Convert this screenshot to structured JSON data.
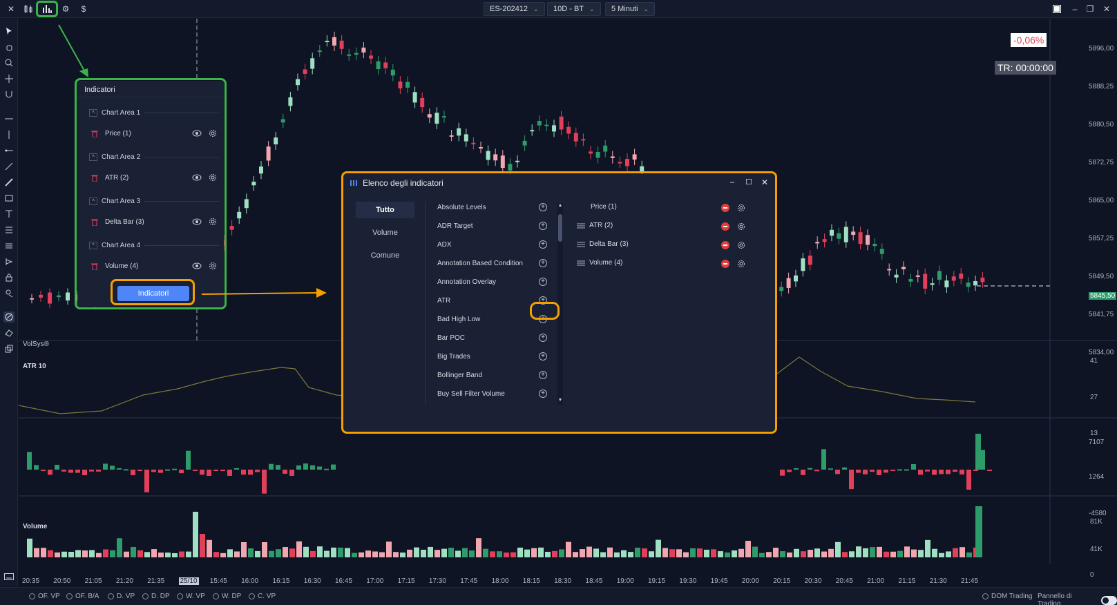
{
  "topbar": {
    "symbol": "ES-202412",
    "period": "10D - BT",
    "timeframe": "5 Minuti"
  },
  "main_chart": {
    "brand": "VolSys®",
    "change": "-0,06%",
    "timer": "TR: 00:00:00",
    "price_labels": [
      "5896,00",
      "5888,25",
      "5880,50",
      "5872,75",
      "5865,00",
      "5857,25",
      "5849,50",
      "5845,50",
      "5841,75",
      "5834,00"
    ]
  },
  "atr_pane": {
    "title": "ATR 10",
    "labels": [
      "41",
      "27",
      "13"
    ]
  },
  "delta_pane": {
    "labels": [
      "7107",
      "1264",
      "-4580"
    ]
  },
  "volume_pane": {
    "title": "Volume",
    "labels": [
      "81K",
      "41K",
      "0"
    ]
  },
  "time_axis": [
    "20:35",
    "20:50",
    "21:05",
    "21:20",
    "21:35",
    "25/10",
    "15:45",
    "16:00",
    "16:15",
    "16:30",
    "16:45",
    "17:00",
    "17:15",
    "17:30",
    "17:45",
    "18:00",
    "18:15",
    "18:30",
    "18:45",
    "19:00",
    "19:15",
    "19:30",
    "19:45",
    "20:00",
    "20:15",
    "20:30",
    "20:45",
    "21:00",
    "21:15",
    "21:30",
    "21:45"
  ],
  "indicator_panel": {
    "title": "Indicatori",
    "areas": [
      {
        "area": "Chart Area 1",
        "item": "Price (1)"
      },
      {
        "area": "Chart Area 2",
        "item": "ATR (2)"
      },
      {
        "area": "Chart Area 3",
        "item": "Delta Bar (3)"
      },
      {
        "area": "Chart Area 4",
        "item": "Volume (4)"
      }
    ],
    "button": "Indicatori"
  },
  "dialog": {
    "title": "Elenco degli indicatori",
    "categories": [
      "Tutto",
      "Volume",
      "Comune"
    ],
    "available": [
      "Absolute Levels",
      "ADR Target",
      "ADX",
      "Annotation Based Condition",
      "Annotation Overlay",
      "ATR",
      "Bad High Low",
      "Bar POC",
      "Big Trades",
      "Bollinger Band",
      "Buy Sell Filter Volume"
    ],
    "selected": [
      "Price (1)",
      "ATR (2)",
      "Delta Bar (3)",
      "Volume (4)"
    ]
  },
  "bottombar": {
    "items": [
      "OF. VP",
      "OF. B/A",
      "D. VP",
      "D. DP",
      "W. VP",
      "W. DP",
      "C. VP"
    ],
    "dom": "DOM Trading",
    "panel": "Pannello di Trading"
  },
  "colors": {
    "up": "#2e9b6b",
    "up_light": "#9fe0c2",
    "down": "#e0405a",
    "down_light": "#f2a7b0",
    "green_annotation": "#3bb54a",
    "orange_annotation": "#f5a000"
  }
}
